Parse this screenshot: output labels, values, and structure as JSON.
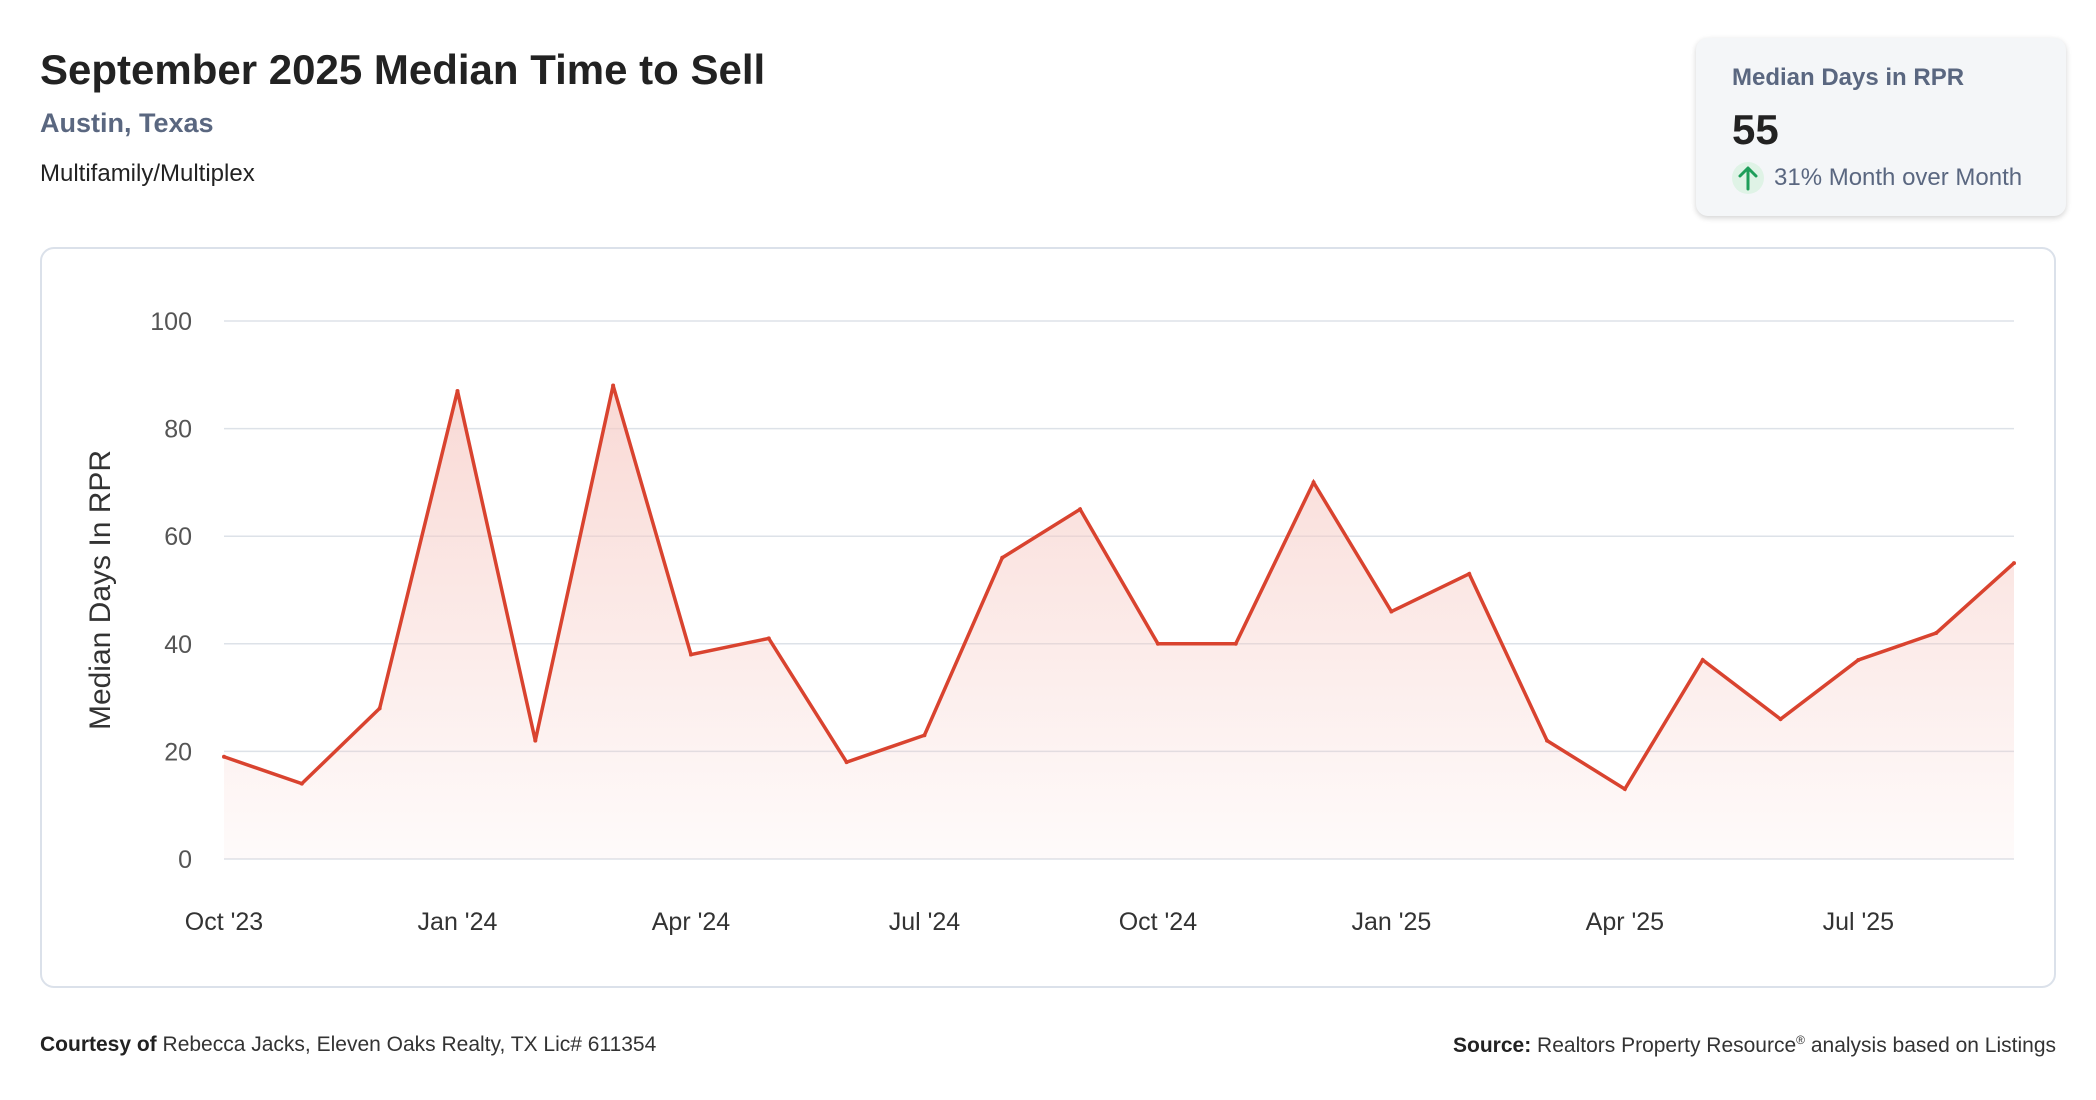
{
  "header": {
    "title": "September 2025 Median Time to Sell",
    "location": "Austin, Texas",
    "category": "Multifamily/Multiplex"
  },
  "summary_card": {
    "label": "Median Days in RPR",
    "value": "55",
    "change_text": "31% Month over Month",
    "change_direction": "up",
    "arrow_icon": "arrow-up-icon",
    "arrow_color": "#1e9e5a"
  },
  "footer": {
    "courtesy_label": "Courtesy of",
    "courtesy_text": "Rebecca Jacks, Eleven Oaks Realty, TX Lic# 611354",
    "source_label": "Source:",
    "source_name": "Realtors Property Resource",
    "source_mark": "®",
    "source_rest": "analysis based on Listings"
  },
  "colors": {
    "line": "#d9432f",
    "fill_top": "#f6c9c3",
    "grid": "#dde2e8",
    "axis_text": "#555555",
    "accent_text": "#5a6780"
  },
  "chart_data": {
    "type": "area",
    "ylabel": "Median Days In RPR",
    "xlabel": "",
    "ylim": [
      0,
      100
    ],
    "yticks": [
      0,
      20,
      40,
      60,
      80,
      100
    ],
    "grid": true,
    "x_tick_labels": [
      "Oct '23",
      "Jan '24",
      "Apr '24",
      "Jul '24",
      "Oct '24",
      "Jan '25",
      "Apr '25",
      "Jul '25"
    ],
    "x": [
      "2023-10",
      "2023-11",
      "2023-12",
      "2024-01",
      "2024-02",
      "2024-03",
      "2024-04",
      "2024-05",
      "2024-06",
      "2024-07",
      "2024-08",
      "2024-09",
      "2024-10",
      "2024-11",
      "2024-12",
      "2025-01",
      "2025-02",
      "2025-03",
      "2025-04",
      "2025-05",
      "2025-06",
      "2025-07",
      "2025-08",
      "2025-09"
    ],
    "series": [
      {
        "values": [
          19,
          14,
          28,
          87,
          22,
          88,
          38,
          41,
          18,
          23,
          56,
          65,
          40,
          40,
          70,
          46,
          53,
          22,
          13,
          37,
          26,
          37,
          42,
          55
        ]
      }
    ]
  }
}
